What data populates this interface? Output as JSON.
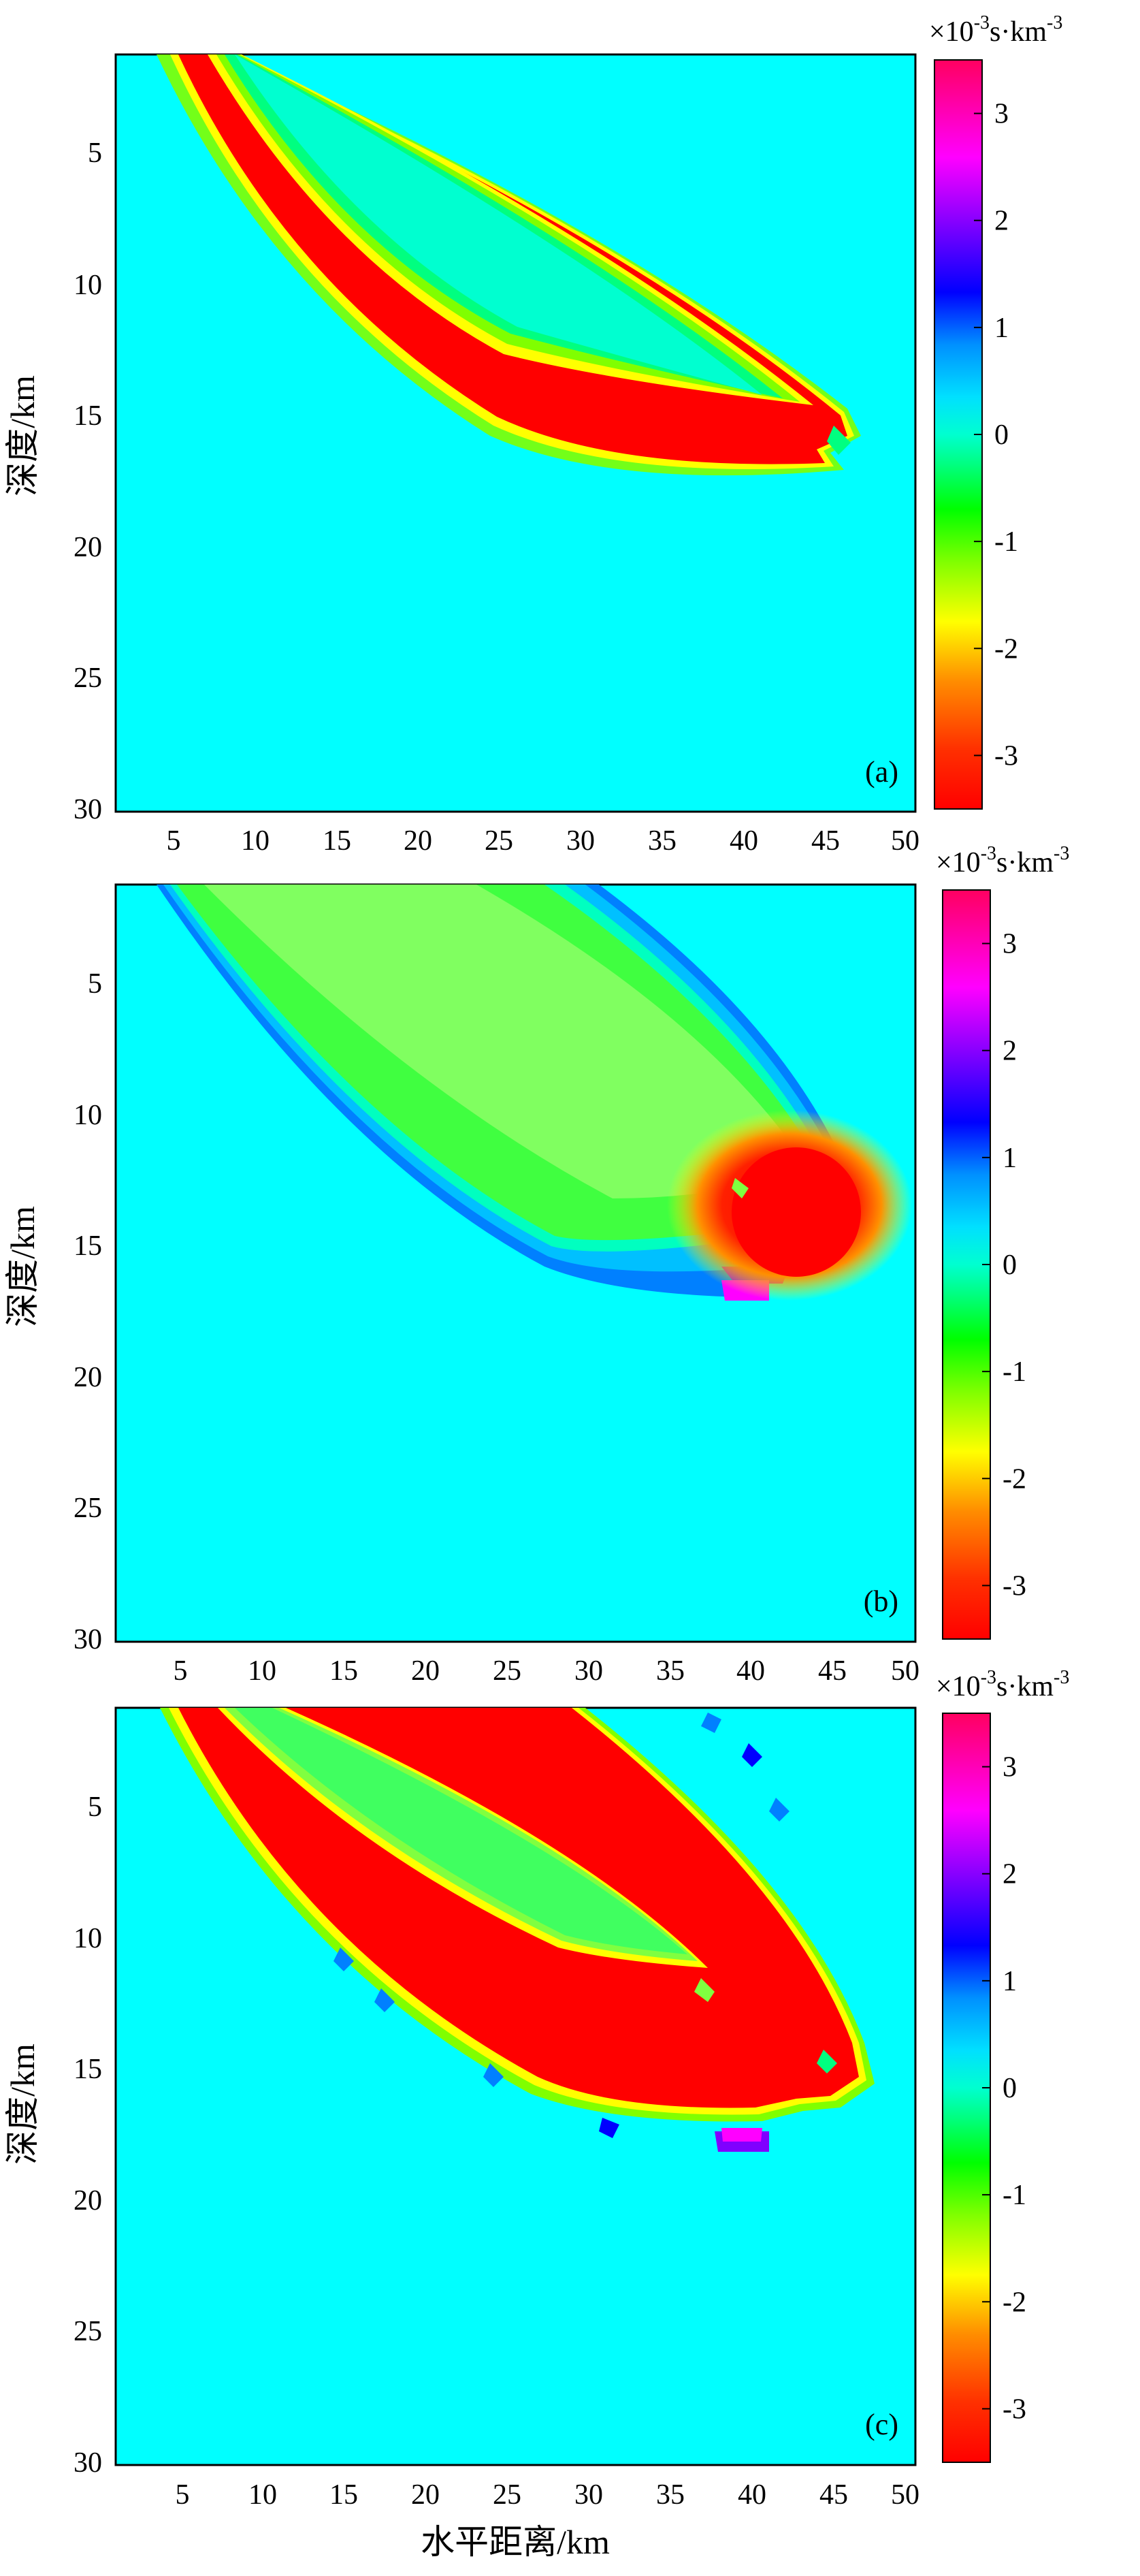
{
  "chart_data": {
    "type": "heatmap",
    "shared": {
      "xlabel": "水平距离/km",
      "ylabel": "深度/km",
      "xlim": [
        0,
        50
      ],
      "ylim": [
        30,
        1
      ],
      "xticks": [
        5,
        10,
        15,
        20,
        25,
        30,
        35,
        40,
        45,
        50
      ],
      "yticks": [
        5,
        10,
        15,
        20,
        25,
        30
      ],
      "colorbar": {
        "unit_prefix": "×10",
        "unit_exp": "-3",
        "unit_main": "s·km",
        "unit_exp2": "-3",
        "range": [
          -3.5,
          3.5
        ],
        "ticks": [
          3,
          2,
          1,
          0,
          -1,
          -2,
          -3
        ],
        "colors": [
          "#ff0000",
          "#ff8000",
          "#ffff00",
          "#80ff00",
          "#00ff00",
          "#00ffb0",
          "#00ffff",
          "#0080ff",
          "#0000ff",
          "#8000ff",
          "#ff00ff",
          "#ff0080"
        ]
      }
    },
    "panels": [
      {
        "label": "(a)",
        "background_value": 0,
        "description_values": [
          {
            "region": "upper lens band",
            "value": -3.5
          },
          {
            "region": "lower lens band",
            "value": -3.5
          },
          {
            "region": "lens interior",
            "value": -0.5
          }
        ]
      },
      {
        "label": "(b)",
        "background_value": 0,
        "description_values": [
          {
            "region": "lens interior",
            "value": -1.2
          },
          {
            "region": "rim",
            "value": 1.0
          },
          {
            "region": "right lobe",
            "value": -3.5
          }
        ]
      },
      {
        "label": "(c)",
        "background_value": 0,
        "description_values": [
          {
            "region": "outer lens",
            "value": -3.5
          },
          {
            "region": "inner lens",
            "value": -1.5
          },
          {
            "region": "edge spots",
            "value": 1.0
          }
        ]
      }
    ]
  }
}
